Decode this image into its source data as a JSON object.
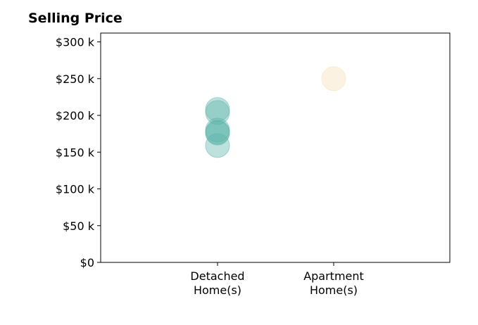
{
  "chart_data": {
    "type": "scatter",
    "title": "Selling Price",
    "categories": [
      "Detached\nHome(s)",
      "Apartment\nHome(s)"
    ],
    "ylim": [
      0,
      312000
    ],
    "yticks": [
      0,
      50000,
      100000,
      150000,
      200000,
      250000,
      300000
    ],
    "ytick_labels": [
      "$0",
      "$50 k",
      "$100 k",
      "$150 k",
      "$200 k",
      "$250 k",
      "$300 k"
    ],
    "grid": false,
    "series": [
      {
        "category": "Detached\nHome(s)",
        "values": [
          208000,
          204000,
          180000,
          177000,
          176000,
          159000
        ],
        "color": "#5bb5a9"
      },
      {
        "category": "Apartment\nHome(s)",
        "values": [
          250000
        ],
        "color": "#f4dfb3"
      }
    ]
  }
}
